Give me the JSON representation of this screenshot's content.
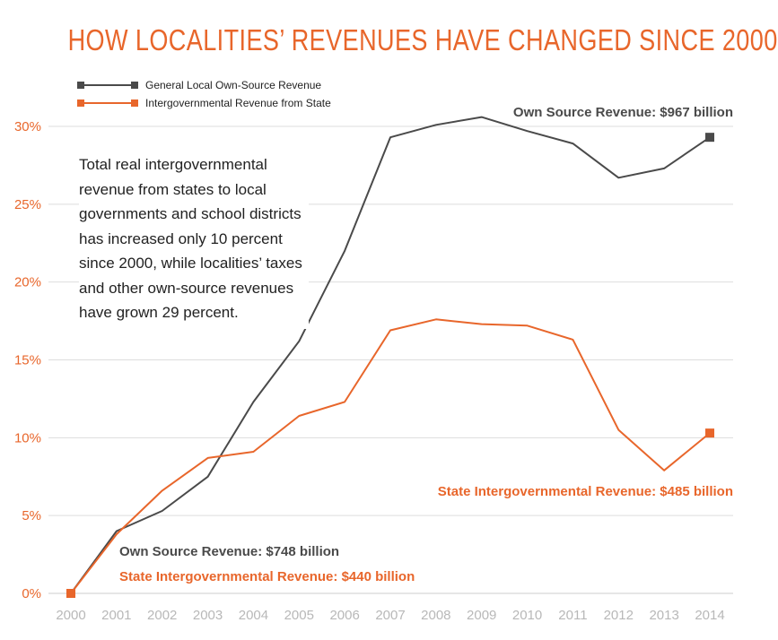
{
  "chart_data": {
    "type": "line",
    "title": "HOW LOCALITIES’ REVENUES HAVE CHANGED SINCE 2000",
    "xlabel": "",
    "ylabel": "",
    "x": [
      2000,
      2001,
      2002,
      2003,
      2004,
      2005,
      2006,
      2007,
      2008,
      2009,
      2010,
      2011,
      2012,
      2013,
      2014
    ],
    "ylim": [
      0,
      30
    ],
    "yticks": [
      0,
      5,
      10,
      15,
      20,
      25,
      30
    ],
    "ytick_labels": [
      "0%",
      "5%",
      "10%",
      "15%",
      "20%",
      "25%",
      "30%"
    ],
    "xtick_labels": [
      "2000",
      "2001",
      "2002",
      "2003",
      "2004",
      "2005",
      "2006",
      "2007",
      "2008",
      "2009",
      "2010",
      "2011",
      "2012",
      "2013",
      "2014"
    ],
    "grid": true,
    "legend_position": "top-left",
    "series": [
      {
        "name": "General Local Own-Source Revenue",
        "color": "#4a4a4a",
        "values": [
          0,
          4.0,
          5.3,
          7.5,
          12.3,
          16.2,
          22.0,
          29.3,
          30.1,
          30.6,
          29.7,
          28.9,
          26.7,
          27.3,
          29.3
        ]
      },
      {
        "name": "Intergovernmental Revenue from State",
        "color": "#e8662b",
        "values": [
          0,
          3.8,
          6.6,
          8.7,
          9.1,
          11.4,
          12.3,
          16.9,
          17.6,
          17.3,
          17.2,
          16.3,
          10.5,
          7.9,
          10.3
        ]
      }
    ],
    "annotations": {
      "own_source_2014": "Own Source Revenue: $967 billion",
      "state_2014": "State Intergovernmental Revenue: $485 billion",
      "own_source_2000": "Own Source Revenue: $748 billion",
      "state_2000": "State Intergovernmental Revenue: $440 billion"
    },
    "note": "Total real intergovernmental revenue from states to local governments and school districts has increased only 10 percent since 2000, while localities’ taxes and other own-source revenues have grown 29 percent.",
    "axis_label_color": "#e8662b",
    "tick_label_color": "#b8b8b8",
    "grid_color": "#dddddd"
  }
}
